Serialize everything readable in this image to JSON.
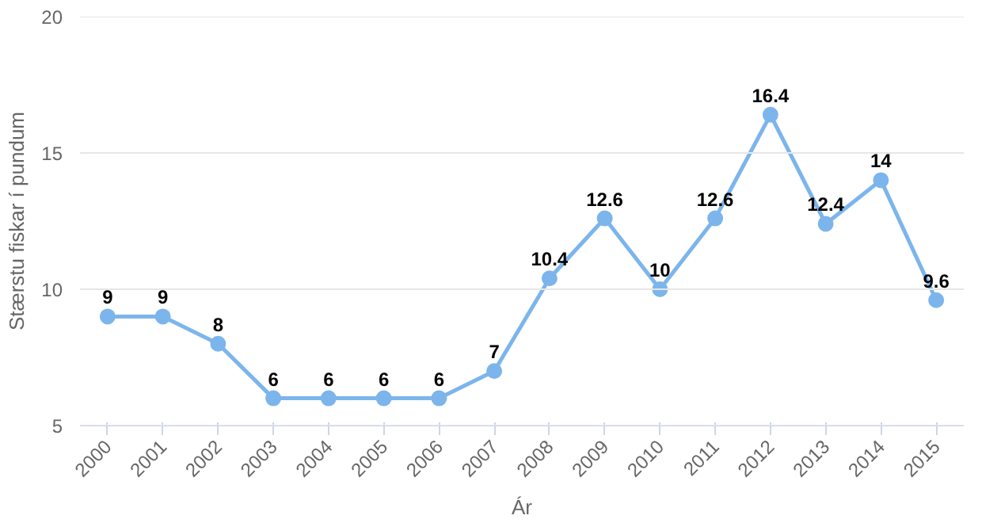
{
  "chart_data": {
    "type": "line",
    "xlabel": "Ár",
    "ylabel": "Stærstu fiskar í pundum",
    "categories": [
      "2000",
      "2001",
      "2002",
      "2003",
      "2004",
      "2005",
      "2006",
      "2007",
      "2008",
      "2009",
      "2010",
      "2011",
      "2012",
      "2013",
      "2014",
      "2015"
    ],
    "series": [
      {
        "color": "#7cb5ec",
        "values": [
          9,
          9,
          8,
          6,
          6,
          6,
          6,
          7,
          10.4,
          12.6,
          10,
          12.6,
          16.4,
          12.4,
          14,
          9.6
        ]
      }
    ],
    "ylim": [
      5,
      20
    ],
    "yticks": [
      5,
      10,
      15,
      20
    ],
    "grid": "y",
    "marker": "circle",
    "line_style": "solid",
    "data_labels": true
  }
}
